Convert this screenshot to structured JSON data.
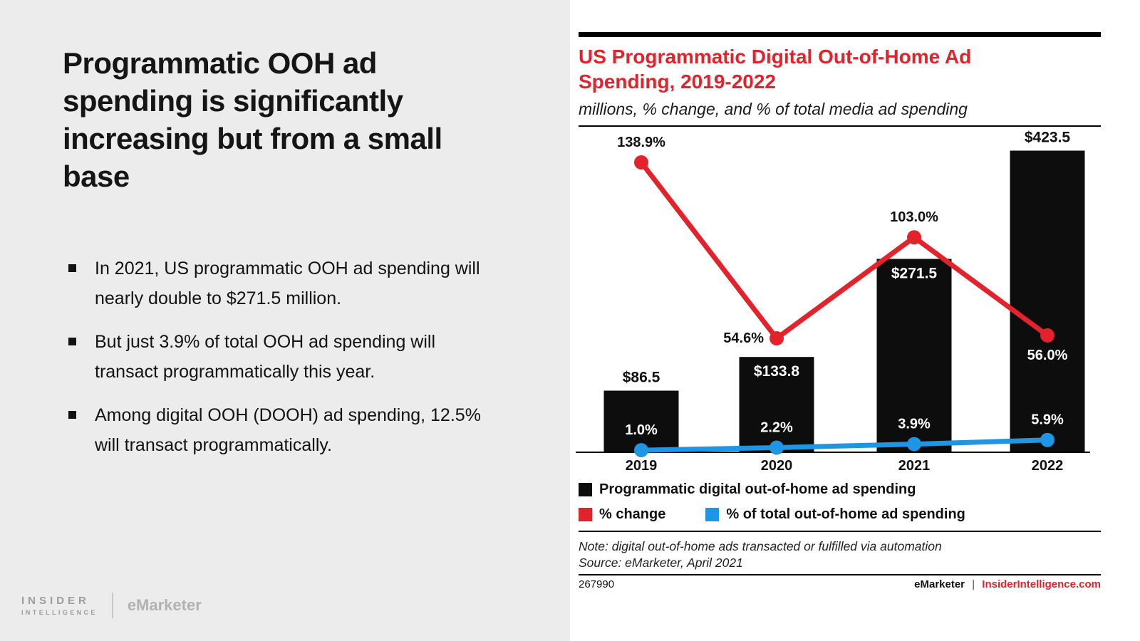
{
  "left_panel": {
    "headline": "Programmatic OOH ad spending is significantly increasing but from a small base",
    "bullets": [
      "In 2021, US programmatic OOH ad spending will nearly double to $271.5 million.",
      "But just 3.9% of total OOH ad spending will transact programmatically this year.",
      "Among digital OOH (DOOH) ad spending, 12.5% will transact programmatically."
    ],
    "logos": {
      "insider_line1": "INSIDER",
      "insider_line2": "INTELLIGENCE",
      "emarketer": "eMarketer"
    }
  },
  "chart_panel": {
    "title": "US Programmatic Digital Out-of-Home Ad Spending, 2019-2022",
    "subtitle": "millions, % change, and % of total media ad spending",
    "legend": [
      {
        "label": "Programmatic digital out-of-home ad spending",
        "color": "#0d0d0d"
      },
      {
        "label": "% change",
        "color": "#e4222b"
      },
      {
        "label": "% of total out-of-home ad spending",
        "color": "#1f96e4"
      }
    ],
    "note": "Note: digital out-of-home ads transacted or fulfilled via automation",
    "source": "Source: eMarketer, April 2021",
    "footer": {
      "chart_id": "267990",
      "brand": "eMarketer",
      "divider": "|",
      "site": "InsiderIntelligence.com"
    }
  },
  "chart_data": {
    "type": "bar+line combo",
    "categories": [
      "2019",
      "2020",
      "2021",
      "2022"
    ],
    "series": [
      {
        "name": "Programmatic digital out-of-home ad spending",
        "type": "bar",
        "unit": "$ millions",
        "color": "#0d0d0d",
        "values": [
          86.5,
          133.8,
          271.5,
          423.5
        ],
        "labels": [
          "$86.5",
          "$133.8",
          "$271.5",
          "$423.5"
        ],
        "label_positions": [
          "above",
          "inside",
          "inside",
          "above"
        ]
      },
      {
        "name": "% change",
        "type": "line",
        "color": "#e4222b",
        "values": [
          138.9,
          54.6,
          103.0,
          56.0
        ],
        "labels": [
          "138.9%",
          "54.6%",
          "103.0%",
          "56.0%"
        ],
        "label_positions": [
          "above",
          "left",
          "above",
          "below"
        ],
        "label_colors": [
          "#111111",
          "#111111",
          "#111111",
          "#ffffff"
        ]
      },
      {
        "name": "% of total out-of-home ad spending",
        "type": "line",
        "color": "#1f96e4",
        "values": [
          1.0,
          2.2,
          3.9,
          5.9
        ],
        "labels": [
          "1.0%",
          "2.2%",
          "3.9%",
          "5.9%"
        ],
        "label_positions": [
          "above",
          "above",
          "above",
          "above"
        ],
        "label_colors": [
          "#ffffff",
          "#ffffff",
          "#ffffff",
          "#ffffff"
        ]
      }
    ],
    "ylim_left_dollars": [
      0,
      450
    ],
    "ylim_right_percent": [
      0,
      150
    ],
    "grid": false,
    "legend_position": "bottom-left"
  }
}
